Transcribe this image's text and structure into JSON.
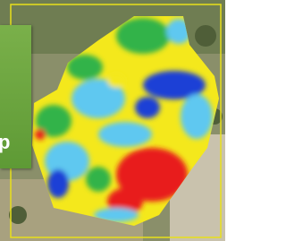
{
  "panel": {
    "text": "p"
  }
}
